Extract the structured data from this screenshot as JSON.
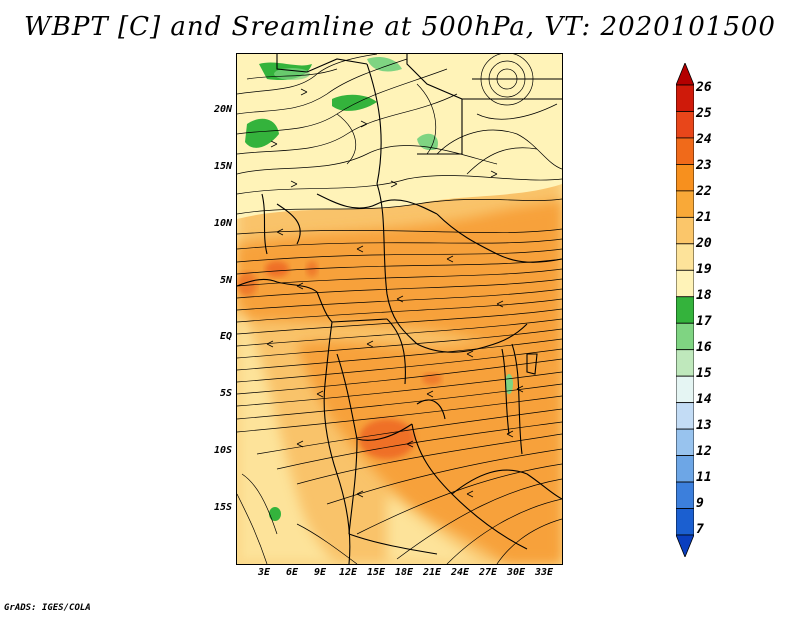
{
  "title": "WBPT [C] and Sreamline at 500hPa, VT: 2020101500",
  "footer": "GrADS: IGES/COLA",
  "map": {
    "lat_labels": [
      "20N",
      "15N",
      "10N",
      "5N",
      "EQ",
      "5S",
      "10S",
      "15S"
    ],
    "lon_labels": [
      "3E",
      "6E",
      "9E",
      "12E",
      "15E",
      "18E",
      "21E",
      "24E",
      "27E",
      "30E",
      "33E"
    ]
  },
  "colorbar": {
    "labels": [
      "26",
      "25",
      "24",
      "23",
      "22",
      "21",
      "20",
      "19",
      "18",
      "17",
      "16",
      "15",
      "14",
      "13",
      "12",
      "11",
      "9",
      "7"
    ],
    "colors": [
      "#b40000",
      "#cf1a0a",
      "#e8461a",
      "#f06a1a",
      "#f7901e",
      "#f9a938",
      "#fbc66a",
      "#fde39a",
      "#fff3b8",
      "#34b33c",
      "#7fd482",
      "#bfe8bc",
      "#e5f5f3",
      "#c3dcf5",
      "#98c3ee",
      "#6da6e6",
      "#3c7fdc",
      "#1b5fd0",
      "#0a3fbf"
    ]
  }
}
